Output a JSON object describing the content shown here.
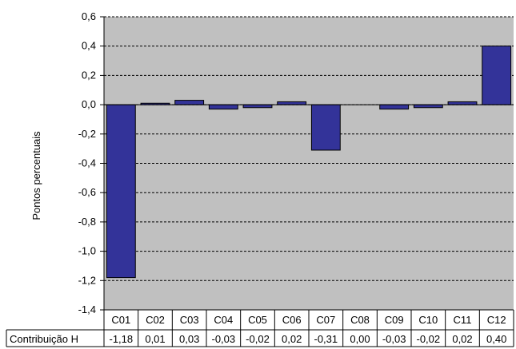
{
  "chart_data": {
    "type": "bar",
    "ylabel": "Pontos percentuais",
    "ylim": [
      -1.4,
      0.6
    ],
    "y_tick_step": 0.2,
    "grid": "horizontal dashed",
    "legend": "none",
    "categories": [
      "C01",
      "C02",
      "C03",
      "C04",
      "C05",
      "C06",
      "C07",
      "C08",
      "C09",
      "C10",
      "C11",
      "C12"
    ],
    "series": [
      {
        "name": "Contribuição H",
        "values": [
          -1.18,
          0.01,
          0.03,
          -0.03,
          -0.02,
          0.02,
          -0.31,
          0.0,
          -0.03,
          -0.02,
          0.02,
          0.4
        ],
        "value_labels": [
          "-1,18",
          "0,01",
          "0,03",
          "-0,03",
          "-0,02",
          "0,02",
          "-0,31",
          "0,00",
          "-0,03",
          "-0,02",
          "0,02",
          "0,40"
        ]
      }
    ],
    "y_tick_labels": [
      "0,6",
      "0,4",
      "0,2",
      "0,0",
      "-0,2",
      "-0,4",
      "-0,6",
      "-0,8",
      "-1,0",
      "-1,2",
      "-1,4"
    ],
    "colors": {
      "plot_background": "#c0c0c0",
      "bar_fill": "#333399",
      "bar_stroke": "#000000",
      "grid": "#000000"
    }
  }
}
